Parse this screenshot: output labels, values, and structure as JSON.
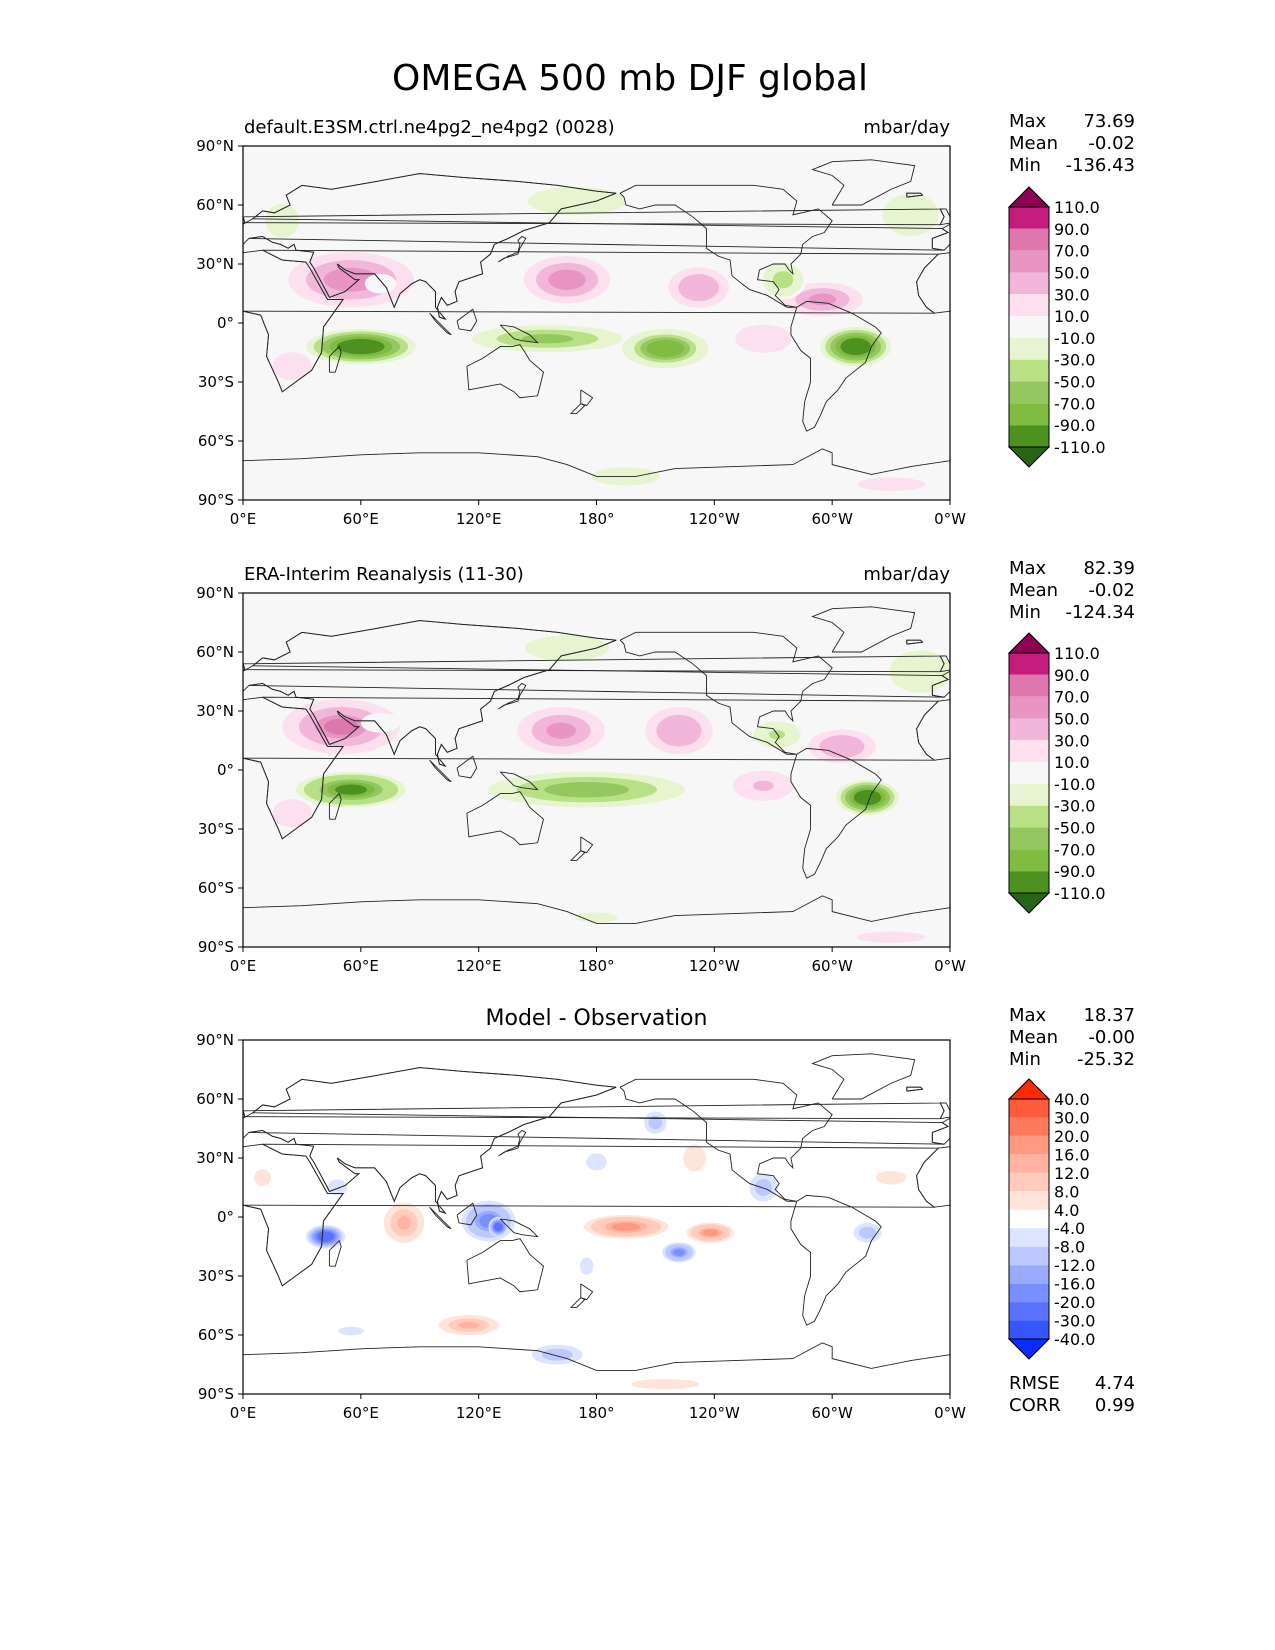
{
  "title": "OMEGA 500 mb DJF global",
  "lat_ticks": [
    "90°N",
    "60°N",
    "30°N",
    "0°",
    "30°S",
    "60°S",
    "90°S"
  ],
  "lon_ticks": [
    "0°E",
    "60°E",
    "120°E",
    "180°",
    "120°W",
    "60°W",
    "0°W"
  ],
  "panels": [
    {
      "left_title": "default.E3SM.ctrl.ne4pg2_ne4pg2 (0028)",
      "right_title": "mbar/day",
      "center_title": "",
      "stats": {
        "max_label": "Max",
        "max": "73.69",
        "mean_label": "Mean",
        "mean": "-0.02",
        "min_label": "Min",
        "min": "-136.43"
      },
      "colorbar": {
        "labels": [
          "110.0",
          "90.0",
          "70.0",
          "50.0",
          "30.0",
          "10.0",
          "-10.0",
          "-30.0",
          "-50.0",
          "-70.0",
          "-90.0",
          "-110.0"
        ],
        "colors": [
          "#8e0152",
          "#c51b7d",
          "#de77ae",
          "#e995c3",
          "#f1b6da",
          "#fde0ef",
          "#f7f7f7",
          "#e6f5d0",
          "#b8e186",
          "#94c760",
          "#7fbc41",
          "#4d9221",
          "#276419"
        ]
      },
      "fields": [
        {
          "lon": 55,
          "lat": 22,
          "rx": 32,
          "ry": 14,
          "v": 60
        },
        {
          "lon": 165,
          "lat": 22,
          "rx": 22,
          "ry": 12,
          "v": 60
        },
        {
          "lon": 232,
          "lat": 18,
          "rx": 18,
          "ry": 12,
          "v": 45
        },
        {
          "lon": 295,
          "lat": 12,
          "rx": 24,
          "ry": 10,
          "v": 55
        },
        {
          "lon": 265,
          "lat": -8,
          "rx": 20,
          "ry": 10,
          "v": 25
        },
        {
          "lon": 25,
          "lat": -22,
          "rx": 14,
          "ry": 10,
          "v": 20
        },
        {
          "lon": 60,
          "lat": -12,
          "rx": 28,
          "ry": 9,
          "v": -110
        },
        {
          "lon": 155,
          "lat": -8,
          "rx": 45,
          "ry": 8,
          "v": -60
        },
        {
          "lon": 215,
          "lat": -13,
          "rx": 22,
          "ry": 10,
          "v": -85
        },
        {
          "lon": 312,
          "lat": -12,
          "rx": 18,
          "ry": 10,
          "v": -110
        },
        {
          "lon": 275,
          "lat": 22,
          "rx": 12,
          "ry": 10,
          "v": -40
        },
        {
          "lon": 170,
          "lat": 62,
          "rx": 35,
          "ry": 10,
          "v": -25
        },
        {
          "lon": 20,
          "lat": 52,
          "rx": 15,
          "ry": 15,
          "v": -20
        },
        {
          "lon": 340,
          "lat": 55,
          "rx": 20,
          "ry": 15,
          "v": -25
        },
        {
          "lon": 70,
          "lat": 20,
          "rx": 8,
          "ry": 5,
          "v": 0
        },
        {
          "lon": 195,
          "lat": -78,
          "rx": 30,
          "ry": 8,
          "v": -20
        },
        {
          "lon": 330,
          "lat": -82,
          "rx": 30,
          "ry": 6,
          "v": 15
        }
      ]
    },
    {
      "left_title": "ERA-Interim Reanalysis (11-30)",
      "right_title": "mbar/day",
      "center_title": "",
      "stats": {
        "max_label": "Max",
        "max": "82.39",
        "mean_label": "Mean",
        "mean": "-0.02",
        "min_label": "Min",
        "min": "-124.34"
      },
      "colorbar": {
        "labels": [
          "110.0",
          "90.0",
          "70.0",
          "50.0",
          "30.0",
          "10.0",
          "-10.0",
          "-30.0",
          "-50.0",
          "-70.0",
          "-90.0",
          "-110.0"
        ],
        "colors": [
          "#8e0152",
          "#c51b7d",
          "#de77ae",
          "#e995c3",
          "#f1b6da",
          "#fde0ef",
          "#f7f7f7",
          "#e6f5d0",
          "#b8e186",
          "#94c760",
          "#7fbc41",
          "#4d9221",
          "#276419"
        ]
      },
      "fields": [
        {
          "lon": 50,
          "lat": 22,
          "rx": 30,
          "ry": 14,
          "v": 70
        },
        {
          "lon": 162,
          "lat": 20,
          "rx": 26,
          "ry": 14,
          "v": 55
        },
        {
          "lon": 222,
          "lat": 20,
          "rx": 20,
          "ry": 14,
          "v": 45
        },
        {
          "lon": 305,
          "lat": 12,
          "rx": 20,
          "ry": 10,
          "v": 45
        },
        {
          "lon": 265,
          "lat": -8,
          "rx": 18,
          "ry": 9,
          "v": 30
        },
        {
          "lon": 25,
          "lat": -22,
          "rx": 14,
          "ry": 10,
          "v": 20
        },
        {
          "lon": 55,
          "lat": -10,
          "rx": 28,
          "ry": 9,
          "v": -100
        },
        {
          "lon": 175,
          "lat": -10,
          "rx": 50,
          "ry": 9,
          "v": -70
        },
        {
          "lon": 318,
          "lat": -14,
          "rx": 16,
          "ry": 9,
          "v": -110
        },
        {
          "lon": 272,
          "lat": 18,
          "rx": 14,
          "ry": 8,
          "v": -35
        },
        {
          "lon": 165,
          "lat": 62,
          "rx": 30,
          "ry": 9,
          "v": -25
        },
        {
          "lon": 345,
          "lat": 50,
          "rx": 22,
          "ry": 15,
          "v": -25
        },
        {
          "lon": 70,
          "lat": 24,
          "rx": 10,
          "ry": 5,
          "v": 0
        },
        {
          "lon": 180,
          "lat": -75,
          "rx": 25,
          "ry": 6,
          "v": -15
        },
        {
          "lon": 330,
          "lat": -85,
          "rx": 30,
          "ry": 5,
          "v": 15
        }
      ]
    },
    {
      "left_title": "",
      "right_title": "",
      "center_title": "Model - Observation",
      "stats": {
        "max_label": "Max",
        "max": "18.37",
        "mean_label": "Mean",
        "mean": "-0.00",
        "min_label": "Min",
        "min": "-25.32"
      },
      "colorbar": {
        "labels": [
          "40.0",
          "30.0",
          "20.0",
          "16.0",
          "12.0",
          "8.0",
          "4.0",
          "-4.0",
          "-8.0",
          "-12.0",
          "-16.0",
          "-20.0",
          "-30.0",
          "-40.0"
        ],
        "colors": [
          "#ff2b00",
          "#ff5a3a",
          "#ff7a5c",
          "#ff9880",
          "#ffb3a0",
          "#ffcbbd",
          "#ffe4db",
          "#ffffff",
          "#dde4ff",
          "#bcc8ff",
          "#9aabff",
          "#7a8fff",
          "#5a72ff",
          "#3455ff",
          "#0b2bff"
        ]
      },
      "fields": [
        {
          "lon": 42,
          "lat": -10,
          "rx": 10,
          "ry": 6,
          "v": -25
        },
        {
          "lon": 48,
          "lat": 15,
          "rx": 9,
          "ry": 7,
          "v": -8
        },
        {
          "lon": 82,
          "lat": -3,
          "rx": 12,
          "ry": 12,
          "v": 12
        },
        {
          "lon": 125,
          "lat": -2,
          "rx": 16,
          "ry": 12,
          "v": -18
        },
        {
          "lon": 130,
          "lat": -5,
          "rx": 5,
          "ry": 5,
          "v": -25
        },
        {
          "lon": 195,
          "lat": -5,
          "rx": 25,
          "ry": 7,
          "v": 16
        },
        {
          "lon": 238,
          "lat": -8,
          "rx": 14,
          "ry": 6,
          "v": 16
        },
        {
          "lon": 222,
          "lat": -18,
          "rx": 10,
          "ry": 6,
          "v": -18
        },
        {
          "lon": 210,
          "lat": 48,
          "rx": 8,
          "ry": 8,
          "v": -12
        },
        {
          "lon": 230,
          "lat": 30,
          "rx": 10,
          "ry": 12,
          "v": 6
        },
        {
          "lon": 265,
          "lat": 15,
          "rx": 10,
          "ry": 10,
          "v": -12
        },
        {
          "lon": 318,
          "lat": -8,
          "rx": 10,
          "ry": 7,
          "v": -12
        },
        {
          "lon": 115,
          "lat": -55,
          "rx": 18,
          "ry": 6,
          "v": 12
        },
        {
          "lon": 160,
          "lat": -70,
          "rx": 18,
          "ry": 7,
          "v": -12
        },
        {
          "lon": 55,
          "lat": -58,
          "rx": 15,
          "ry": 5,
          "v": -6
        },
        {
          "lon": 215,
          "lat": -85,
          "rx": 40,
          "ry": 6,
          "v": 5
        },
        {
          "lon": 330,
          "lat": 20,
          "rx": 18,
          "ry": 8,
          "v": 5
        },
        {
          "lon": 10,
          "lat": 20,
          "rx": 10,
          "ry": 10,
          "v": 5
        },
        {
          "lon": 180,
          "lat": 28,
          "rx": 12,
          "ry": 10,
          "v": -6
        },
        {
          "lon": 175,
          "lat": -25,
          "rx": 8,
          "ry": 10,
          "v": -6
        }
      ]
    }
  ],
  "diff_stats": {
    "rmse_label": "RMSE",
    "rmse": "4.74",
    "corr_label": "CORR",
    "corr": "0.99"
  }
}
